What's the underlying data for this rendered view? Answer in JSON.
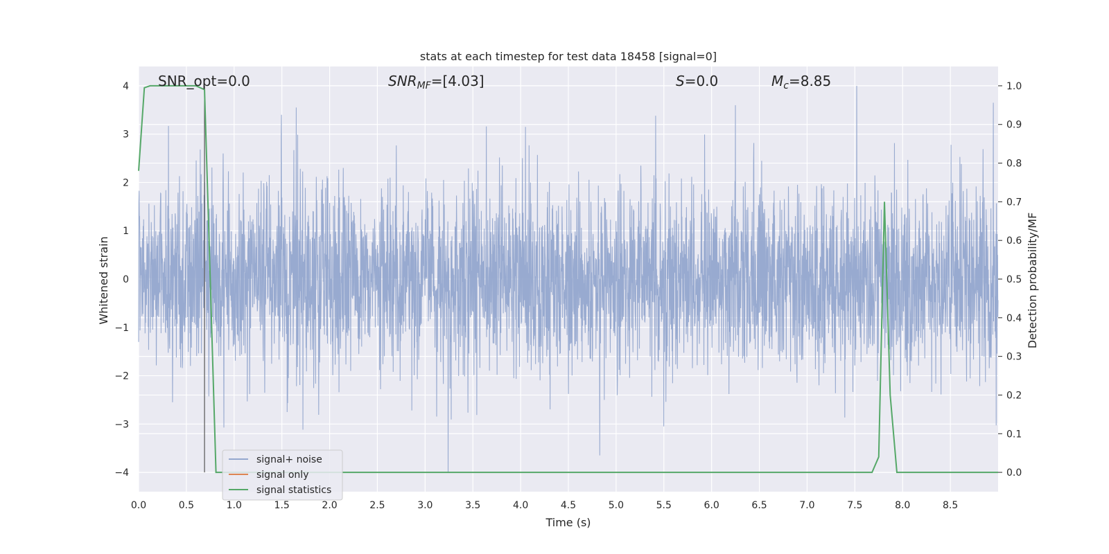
{
  "chart_data": {
    "type": "line",
    "title": "stats at each timestep for test data 18458 [signal=0]",
    "xlabel": "Time (s)",
    "ylabel_left": "Whitened strain",
    "ylabel_right": "Detection probability/MF",
    "xlim": [
      0.0,
      9.0
    ],
    "ylim_left": [
      -4.4,
      4.4
    ],
    "ylim_right": [
      -0.05,
      1.05
    ],
    "xticks": [
      "0.0",
      "0.5",
      "1.0",
      "1.5",
      "2.0",
      "2.5",
      "3.0",
      "3.5",
      "4.0",
      "4.5",
      "5.0",
      "5.5",
      "6.0",
      "6.5",
      "7.0",
      "7.5",
      "8.0",
      "8.5"
    ],
    "yticks_left": [
      "4",
      "3",
      "2",
      "1",
      "0",
      "−1",
      "−2",
      "−3",
      "−4"
    ],
    "yticks_right": [
      "1.0",
      "0.9",
      "0.8",
      "0.7",
      "0.6",
      "0.5",
      "0.4",
      "0.3",
      "0.2",
      "0.1",
      "0.0"
    ],
    "grid": true,
    "legend_placement": "lower-left",
    "annotations": [
      {
        "label": "SNR_opt=0.0"
      },
      {
        "label_main": "SNR",
        "label_sub": "MF",
        "label_rest": "=[4.03]"
      },
      {
        "label_main": "S",
        "label_rest": "=0.0"
      },
      {
        "label_main": "M",
        "label_sub": "c",
        "label_rest": "=8.85"
      }
    ],
    "vertical_line_x": 0.69,
    "series": [
      {
        "name": "signal+ noise",
        "axis": "left",
        "color": "#94a7ce",
        "description_values": {
          "approx_range": [
            -4.0,
            4.0
          ],
          "notable_peaks": [
            [
              1.65,
              3.55
            ],
            [
              4.05,
              3.15
            ],
            [
              6.25,
              3.6
            ],
            [
              7.52,
              4.0
            ],
            [
              8.95,
              3.65
            ]
          ],
          "notable_troughs": [
            [
              3.24,
              -4.0
            ],
            [
              4.83,
              -3.65
            ],
            [
              5.5,
              -3.05
            ]
          ]
        }
      },
      {
        "name": "signal only",
        "axis": "left",
        "color": "#dd8452",
        "x": [],
        "y": []
      },
      {
        "name": "signal statistics",
        "axis": "right",
        "color": "#55a868",
        "x": [
          0.0,
          0.06,
          0.12,
          0.2,
          0.4,
          0.6,
          0.69,
          0.75,
          0.81,
          1.0,
          2.0,
          3.0,
          4.0,
          5.0,
          6.0,
          7.0,
          7.68,
          7.75,
          7.81,
          7.87,
          7.94,
          8.0,
          9.0
        ],
        "y": [
          0.78,
          0.995,
          1.0,
          1.0,
          1.0,
          1.0,
          0.99,
          0.5,
          0.0,
          0.0,
          0.0,
          0.0,
          0.0,
          0.0,
          0.0,
          0.0,
          0.0,
          0.04,
          0.7,
          0.2,
          0.0,
          0.0,
          0.0
        ]
      }
    ]
  },
  "colors": {
    "axes_background": "#eaeaf2",
    "grid": "#ffffff",
    "noise": "#94a7ce",
    "signal_only": "#dd8452",
    "statistics": "#55a868",
    "vline": "#555555"
  }
}
